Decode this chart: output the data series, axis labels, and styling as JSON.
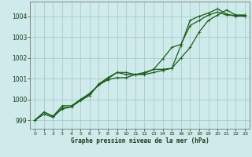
{
  "xlabel": "Graphe pression niveau de la mer (hPa)",
  "background_color": "#ceeaea",
  "grid_color": "#aacccc",
  "line_color": "#1a5c1a",
  "ylim": [
    998.6,
    1004.7
  ],
  "xlim": [
    -0.5,
    23.5
  ],
  "yticks": [
    999,
    1000,
    1001,
    1002,
    1003,
    1004
  ],
  "xticks": [
    0,
    1,
    2,
    3,
    4,
    5,
    6,
    7,
    8,
    9,
    10,
    11,
    12,
    13,
    14,
    15,
    16,
    17,
    18,
    19,
    20,
    21,
    22,
    23
  ],
  "series": [
    [
      999.0,
      999.4,
      999.2,
      999.7,
      999.7,
      1000.0,
      1000.3,
      1000.7,
      1001.0,
      1001.3,
      1001.2,
      1001.2,
      1001.2,
      1001.3,
      1001.4,
      1001.5,
      1002.6,
      1003.8,
      1004.0,
      1004.15,
      1004.35,
      1004.1,
      1004.0,
      1004.0
    ],
    [
      999.0,
      999.3,
      999.15,
      999.6,
      999.65,
      1000.0,
      1000.25,
      1000.7,
      1000.95,
      1001.05,
      1001.05,
      1001.2,
      1001.25,
      1001.45,
      1001.95,
      1002.5,
      1002.65,
      1003.55,
      1003.8,
      1004.05,
      1004.2,
      1004.05,
      1004.05,
      1004.05
    ],
    [
      999.0,
      999.4,
      999.2,
      999.55,
      999.65,
      999.95,
      1000.2,
      1000.75,
      1001.05,
      1001.3,
      1001.3,
      1001.2,
      1001.3,
      1001.45,
      1001.45,
      1001.5,
      1002.0,
      1002.5,
      1003.25,
      1003.8,
      1004.05,
      1004.3,
      1004.05,
      1004.05
    ]
  ]
}
